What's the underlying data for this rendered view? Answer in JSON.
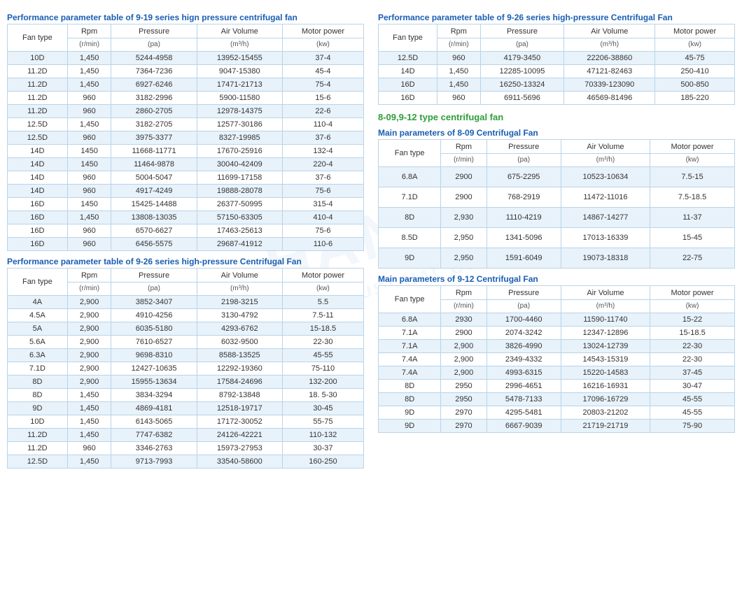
{
  "watermark_main": "HANOI",
  "watermark_sub": "INDUSTRIAL CO., LTD",
  "headers": {
    "fan_type": "Fan type",
    "rpm": "Rpm",
    "rpm_unit": "(r/min)",
    "pressure": "Pressure",
    "pressure_unit": "(pa)",
    "air_volume": "Air Volume",
    "air_volume_unit": "(m³/h)",
    "motor_power": "Motor power",
    "motor_power_unit": "(kw)"
  },
  "tables": {
    "t919": {
      "title": "Performance parameter table of 9-19 series hign pressure centrifugal fan",
      "rows": [
        [
          "10D",
          "1,450",
          "5244-4958",
          "13952-15455",
          "37-4"
        ],
        [
          "11.2D",
          "1,450",
          "7364-7236",
          "9047-15380",
          "45-4"
        ],
        [
          "11.2D",
          "1,450",
          "6927-6246",
          "17471-21713",
          "75-4"
        ],
        [
          "11.2D",
          "960",
          "3182-2996",
          "5900-11580",
          "15-6"
        ],
        [
          "11.2D",
          "960",
          "2860-2705",
          "12978-14375",
          "22-6"
        ],
        [
          "12.5D",
          "1,450",
          "3182-2705",
          "12577-30186",
          "110-4"
        ],
        [
          "12.5D",
          "960",
          "3975-3377",
          "8327-19985",
          "37-6"
        ],
        [
          "14D",
          "1450",
          "11668-11771",
          "17670-25916",
          "132-4"
        ],
        [
          "14D",
          "1450",
          "11464-9878",
          "30040-42409",
          "220-4"
        ],
        [
          "14D",
          "960",
          "5004-5047",
          "11699-17158",
          "37-6"
        ],
        [
          "14D",
          "960",
          "4917-4249",
          "19888-28078",
          "75-6"
        ],
        [
          "16D",
          "1450",
          "15425-14488",
          "26377-50995",
          "315-4"
        ],
        [
          "16D",
          "1,450",
          "13808-13035",
          "57150-63305",
          "410-4"
        ],
        [
          "16D",
          "960",
          "6570-6627",
          "17463-25613",
          "75-6"
        ],
        [
          "16D",
          "960",
          "6456-5575",
          "29687-41912",
          "110-6"
        ]
      ]
    },
    "t926a": {
      "title": "Performance parameter table of 9-26 series high-pressure Centrifugal Fan",
      "rows": [
        [
          "4A",
          "2,900",
          "3852-3407",
          "2198-3215",
          "5.5"
        ],
        [
          "4.5A",
          "2,900",
          "4910-4256",
          "3130-4792",
          "7.5-11"
        ],
        [
          "5A",
          "2,900",
          "6035-5180",
          "4293-6762",
          "15-18.5"
        ],
        [
          "5.6A",
          "2,900",
          "7610-6527",
          "6032-9500",
          "22-30"
        ],
        [
          "6.3A",
          "2,900",
          "9698-8310",
          "8588-13525",
          "45-55"
        ],
        [
          "7.1D",
          "2,900",
          "12427-10635",
          "12292-19360",
          "75-110"
        ],
        [
          "8D",
          "2,900",
          "15955-13634",
          "17584-24696",
          "132-200"
        ],
        [
          "8D",
          "1,450",
          "3834-3294",
          "8792-13848",
          "18. 5-30"
        ],
        [
          "9D",
          "1,450",
          "4869-4181",
          "12518-19717",
          "30-45"
        ],
        [
          "10D",
          "1,450",
          "6143-5065",
          "17172-30052",
          "55-75"
        ],
        [
          "11.2D",
          "1,450",
          "7747-6382",
          "24126-42221",
          "110-132"
        ],
        [
          "11.2D",
          "960",
          "3346-2763",
          "15973-27953",
          "30-37"
        ],
        [
          "12.5D",
          "1,450",
          "9713-7993",
          "33540-58600",
          "160-250"
        ]
      ]
    },
    "t926b": {
      "title": "Performance parameter table of 9-26 series high-pressure Centrifugal Fan",
      "rows": [
        [
          "12.5D",
          "960",
          "4179-3450",
          "22206-38860",
          "45-75"
        ],
        [
          "14D",
          "1,450",
          "12285-10095",
          "47121-82463",
          "250-410"
        ],
        [
          "16D",
          "1,450",
          "16250-13324",
          "70339-123090",
          "500-850"
        ],
        [
          "16D",
          "960",
          "6911-5696",
          "46569-81496",
          "185-220"
        ]
      ]
    },
    "t809": {
      "title_group": "8-09,9-12 type centrifugal fan",
      "title": "Main parameters of 8-09 Centrifugal Fan",
      "rows": [
        [
          "6.8A",
          "2900",
          "675-2295",
          "10523-10634",
          "7.5-15"
        ],
        [
          "7.1D",
          "2900",
          "768-2919",
          "11472-11016",
          "7.5-18.5"
        ],
        [
          "8D",
          "2,930",
          "1110-4219",
          "14867-14277",
          "11-37"
        ],
        [
          "8.5D",
          "2,950",
          "1341-5096",
          "17013-16339",
          "15-45"
        ],
        [
          "9D",
          "2,950",
          "1591-6049",
          "19073-18318",
          "22-75"
        ]
      ]
    },
    "t912": {
      "title": "Main parameters of 9-12 Centrifugal Fan",
      "rows": [
        [
          "6.8A",
          "2930",
          "1700-4460",
          "11590-11740",
          "15-22"
        ],
        [
          "7.1A",
          "2900",
          "2074-3242",
          "12347-12896",
          "15-18.5"
        ],
        [
          "7.1A",
          "2,900",
          "3826-4990",
          "13024-12739",
          "22-30"
        ],
        [
          "7.4A",
          "2,900",
          "2349-4332",
          "14543-15319",
          "22-30"
        ],
        [
          "7.4A",
          "2,900",
          "4993-6315",
          "15220-14583",
          "37-45"
        ],
        [
          "8D",
          "2950",
          "2996-4651",
          "16216-16931",
          "30-47"
        ],
        [
          "8D",
          "2950",
          "5478-7133",
          "17096-16729",
          "45-55"
        ],
        [
          "9D",
          "2970",
          "4295-5481",
          "20803-21202",
          "45-55"
        ],
        [
          "9D",
          "2970",
          "6667-9039",
          "21719-21719",
          "75-90"
        ]
      ]
    }
  }
}
